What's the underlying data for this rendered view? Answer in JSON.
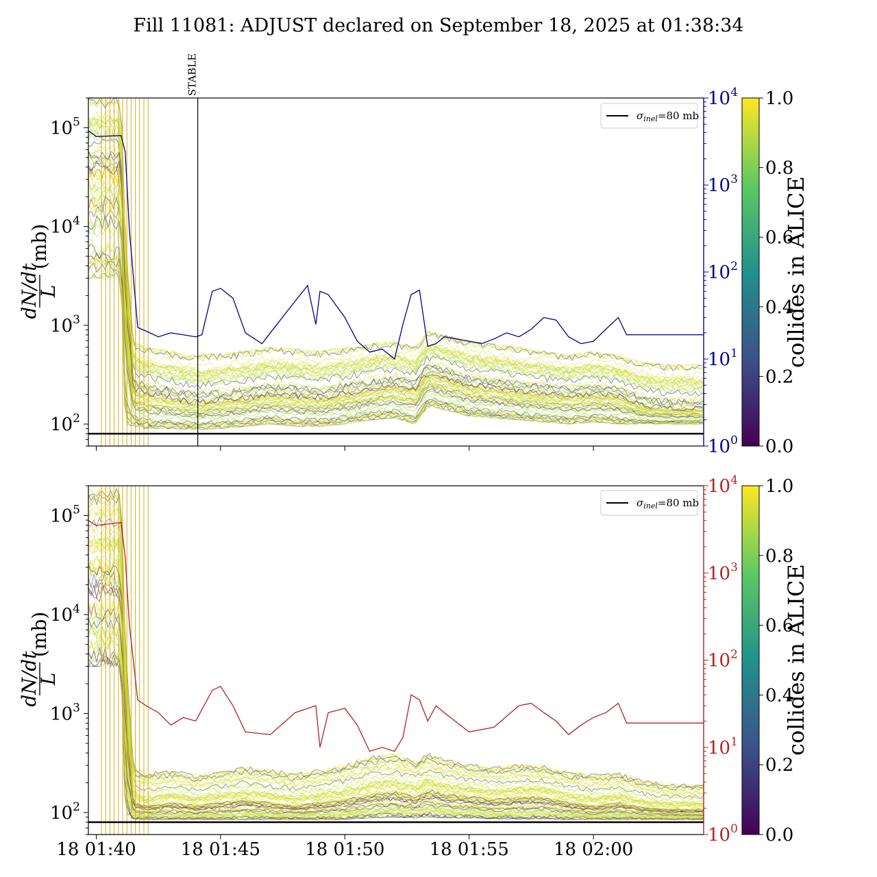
{
  "figure": {
    "title": "Fill 11081: ADJUST declared on September 18, 2025 at 01:38:34"
  },
  "colors": {
    "top_rate_line": "#00008b",
    "bottom_rate_line": "#b22222",
    "sigma_line": "#000000",
    "colormap": [
      "#440154",
      "#3b528b",
      "#21918c",
      "#5ec962",
      "#fde725"
    ]
  },
  "chart_data": [
    {
      "type": "line",
      "panel": "top",
      "ylabel": "(mb)",
      "ylabel_fraction": {
        "numerator": "dN/dt",
        "denominator": "L"
      },
      "y_scale": "log",
      "ylim": [
        60,
        200000
      ],
      "yticks": [
        {
          "value": 100,
          "label": "10",
          "exp": "2"
        },
        {
          "value": 1000,
          "label": "10",
          "exp": "3"
        },
        {
          "value": 10000,
          "label": "10",
          "exp": "4"
        },
        {
          "value": 100000,
          "label": "10",
          "exp": "5"
        }
      ],
      "y2_scale": "log",
      "y2lim": [
        1,
        10000
      ],
      "y2ticks": [
        {
          "value": 1,
          "label": "10",
          "exp": "0"
        },
        {
          "value": 10,
          "label": "10",
          "exp": "1"
        },
        {
          "value": 100,
          "label": "10",
          "exp": "2"
        },
        {
          "value": 1000,
          "label": "10",
          "exp": "3"
        },
        {
          "value": 10000,
          "label": "10",
          "exp": "4"
        }
      ],
      "xlim": [
        "01:39:41",
        "02:04:26"
      ],
      "xticks": [
        "01:40:00",
        "01:45:00",
        "01:50:00",
        "01:55:00",
        "02:00:00"
      ],
      "annotation": {
        "text": "STABLE",
        "time": "01:44:05"
      },
      "legend": {
        "position": "top-right",
        "entries": [
          {
            "label_symbol": "σ",
            "label_sub": "inel",
            "label_rest": "=80 mb"
          }
        ]
      },
      "sigma_inel_mb": 80,
      "colorbar": {
        "label": "collides in ALICE",
        "ticks": [
          "0.0",
          "0.2",
          "0.4",
          "0.6",
          "0.8",
          "1.0"
        ],
        "range": [
          0,
          1
        ]
      },
      "rate_series": {
        "t": [
          "01:39:41",
          "01:40:00",
          "01:41:00",
          "01:41:10",
          "01:41:20",
          "01:41:40",
          "01:42:00",
          "01:42:30",
          "01:43:00",
          "01:43:30",
          "01:44:00",
          "01:44:15",
          "01:44:40",
          "01:45:00",
          "01:45:30",
          "01:46:00",
          "01:46:40",
          "01:47:00",
          "01:47:40",
          "01:48:30",
          "01:48:50",
          "01:49:00",
          "01:49:20",
          "01:50:00",
          "01:50:30",
          "01:51:00",
          "01:51:30",
          "01:52:00",
          "01:52:20",
          "01:52:40",
          "01:53:00",
          "01:53:20",
          "01:53:40",
          "01:54:00",
          "01:54:30",
          "01:55:00",
          "01:55:30",
          "01:56:00",
          "01:56:30",
          "01:57:00",
          "01:57:30",
          "01:58:00",
          "01:58:30",
          "01:59:00",
          "01:59:30",
          "02:00:00",
          "02:00:30",
          "02:01:00",
          "02:01:20",
          "02:02:00",
          "02:03:00",
          "02:04:26"
        ],
        "y": [
          4200,
          3600,
          3700,
          2400,
          300,
          23,
          21,
          18,
          20,
          19,
          18,
          19,
          60,
          65,
          50,
          20,
          15,
          20,
          35,
          70,
          25,
          60,
          55,
          30,
          16,
          12,
          13,
          10,
          25,
          55,
          62,
          14,
          15,
          18,
          17,
          16,
          15,
          17,
          20,
          18,
          22,
          30,
          28,
          18,
          15,
          16,
          22,
          30,
          19,
          19,
          19,
          19
        ]
      },
      "ratio_band": {
        "t": [
          "01:39:41",
          "01:41:00",
          "01:41:10",
          "01:41:30",
          "01:42:00",
          "01:43:00",
          "01:44:00",
          "01:45:00",
          "01:46:00",
          "01:47:00",
          "01:48:00",
          "01:49:00",
          "01:50:00",
          "01:51:00",
          "01:52:00",
          "01:52:50",
          "01:53:20",
          "01:54:00",
          "01:55:00",
          "01:56:00",
          "01:57:00",
          "01:58:00",
          "01:59:00",
          "02:00:00",
          "02:01:00",
          "02:02:00",
          "02:03:00",
          "02:04:26"
        ],
        "median": [
          40000,
          40000,
          2000,
          220,
          200,
          180,
          160,
          170,
          180,
          200,
          190,
          180,
          200,
          220,
          240,
          220,
          320,
          300,
          240,
          230,
          210,
          200,
          190,
          200,
          190,
          150,
          140,
          140
        ],
        "low": [
          3000,
          3000,
          100,
          95,
          90,
          90,
          88,
          90,
          95,
          100,
          95,
          95,
          100,
          110,
          115,
          100,
          150,
          140,
          120,
          115,
          110,
          105,
          100,
          105,
          100,
          100,
          100,
          100
        ],
        "high": [
          200000,
          200000,
          8000,
          700,
          600,
          550,
          500,
          520,
          550,
          600,
          580,
          550,
          600,
          650,
          700,
          600,
          900,
          800,
          700,
          650,
          600,
          550,
          500,
          550,
          500,
          420,
          400,
          400
        ]
      }
    },
    {
      "type": "line",
      "panel": "bottom",
      "ylabel": "(mb)",
      "ylabel_fraction": {
        "numerator": "dN/dt",
        "denominator": "L"
      },
      "y_scale": "log",
      "ylim": [
        60,
        200000
      ],
      "yticks": [
        {
          "value": 100,
          "label": "10",
          "exp": "2"
        },
        {
          "value": 1000,
          "label": "10",
          "exp": "3"
        },
        {
          "value": 10000,
          "label": "10",
          "exp": "4"
        },
        {
          "value": 100000,
          "label": "10",
          "exp": "5"
        }
      ],
      "y2_scale": "log",
      "y2lim": [
        1,
        10000
      ],
      "y2ticks": [
        {
          "value": 1,
          "label": "10",
          "exp": "0"
        },
        {
          "value": 10,
          "label": "10",
          "exp": "1"
        },
        {
          "value": 100,
          "label": "10",
          "exp": "2"
        },
        {
          "value": 1000,
          "label": "10",
          "exp": "3"
        },
        {
          "value": 10000,
          "label": "10",
          "exp": "4"
        }
      ],
      "xlim": [
        "01:39:41",
        "02:04:26"
      ],
      "xticks": [
        {
          "time": "01:40:00",
          "label": "18 01:40"
        },
        {
          "time": "01:45:00",
          "label": "18 01:45"
        },
        {
          "time": "01:50:00",
          "label": "18 01:50"
        },
        {
          "time": "01:55:00",
          "label": "18 01:55"
        },
        {
          "time": "02:00:00",
          "label": "18 02:00"
        }
      ],
      "legend": {
        "position": "top-right",
        "entries": [
          {
            "label_symbol": "σ",
            "label_sub": "inel",
            "label_rest": "=80 mb"
          }
        ]
      },
      "sigma_inel_mb": 80,
      "colorbar": {
        "label": "collides in ALICE",
        "ticks": [
          "0.0",
          "0.2",
          "0.4",
          "0.6",
          "0.8",
          "1.0"
        ],
        "range": [
          0,
          1
        ]
      },
      "rate_series": {
        "t": [
          "01:39:41",
          "01:40:00",
          "01:41:00",
          "01:41:10",
          "01:41:20",
          "01:41:40",
          "01:42:00",
          "01:42:30",
          "01:43:00",
          "01:43:30",
          "01:44:00",
          "01:44:40",
          "01:45:00",
          "01:45:30",
          "01:46:00",
          "01:47:00",
          "01:48:00",
          "01:48:50",
          "01:49:00",
          "01:49:20",
          "01:50:00",
          "01:50:30",
          "01:51:00",
          "01:51:30",
          "01:52:00",
          "01:52:20",
          "01:52:40",
          "01:53:00",
          "01:53:20",
          "01:53:40",
          "01:54:00",
          "01:55:00",
          "01:56:00",
          "01:57:00",
          "01:57:30",
          "01:58:00",
          "01:58:30",
          "01:59:00",
          "01:59:30",
          "02:00:00",
          "02:00:30",
          "02:01:00",
          "02:01:20",
          "02:02:00",
          "02:03:00",
          "02:04:26"
        ],
        "y": [
          4000,
          3500,
          3800,
          1500,
          250,
          35,
          30,
          25,
          18,
          22,
          20,
          45,
          50,
          30,
          15,
          14,
          25,
          30,
          10,
          25,
          28,
          18,
          9,
          10,
          9,
          13,
          40,
          35,
          20,
          30,
          25,
          15,
          17,
          30,
          32,
          25,
          20,
          14,
          18,
          22,
          25,
          32,
          19,
          19,
          19,
          19
        ]
      },
      "ratio_band": {
        "t": [
          "01:39:41",
          "01:41:00",
          "01:41:10",
          "01:41:30",
          "01:42:00",
          "01:43:00",
          "01:44:00",
          "01:45:00",
          "01:46:00",
          "01:47:00",
          "01:48:00",
          "01:49:00",
          "01:50:00",
          "01:51:00",
          "01:52:00",
          "01:52:50",
          "01:53:20",
          "01:54:00",
          "01:55:00",
          "01:56:00",
          "01:57:00",
          "01:58:00",
          "01:59:00",
          "02:00:00",
          "02:01:00",
          "02:02:00",
          "02:03:00",
          "02:04:26"
        ],
        "median": [
          40000,
          40000,
          1500,
          130,
          120,
          130,
          120,
          130,
          140,
          130,
          120,
          130,
          140,
          160,
          170,
          150,
          180,
          160,
          150,
          140,
          150,
          150,
          130,
          120,
          130,
          115,
          110,
          110
        ],
        "low": [
          3000,
          3000,
          100,
          85,
          85,
          85,
          85,
          85,
          85,
          85,
          85,
          85,
          85,
          88,
          90,
          88,
          90,
          88,
          88,
          86,
          86,
          86,
          85,
          85,
          85,
          85,
          85,
          85
        ],
        "high": [
          200000,
          200000,
          6000,
          300,
          260,
          280,
          250,
          270,
          300,
          280,
          260,
          280,
          320,
          380,
          420,
          350,
          420,
          360,
          320,
          300,
          320,
          310,
          270,
          250,
          260,
          220,
          200,
          200
        ]
      }
    }
  ]
}
